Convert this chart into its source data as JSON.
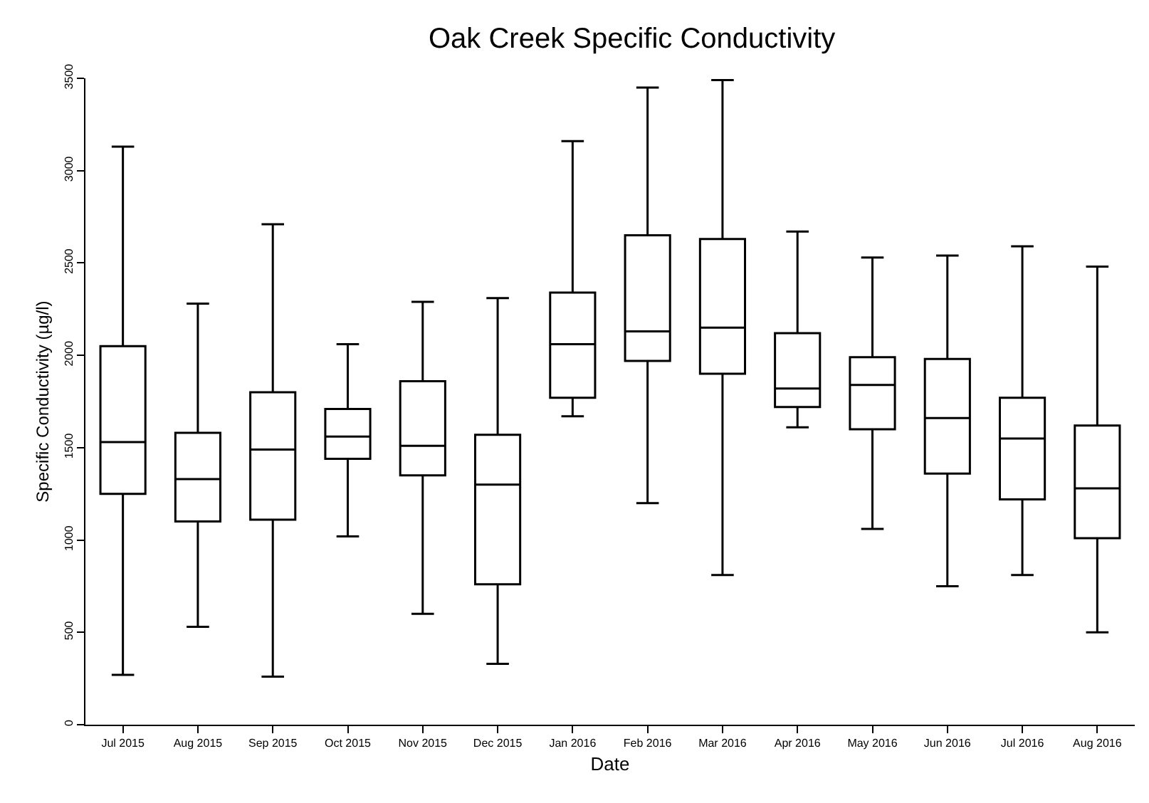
{
  "chart_data": {
    "type": "box",
    "title": "Oak Creek Specific Conductivity",
    "xlabel": "Date",
    "ylabel": "Specific Conductivity (µg/l)",
    "categories": [
      "Jul 2015",
      "Aug 2015",
      "Sep 2015",
      "Oct 2015",
      "Nov 2015",
      "Dec 2015",
      "Jan 2016",
      "Feb 2016",
      "Mar 2016",
      "Apr 2016",
      "May 2016",
      "Jun 2016",
      "Jul 2016",
      "Aug 2016"
    ],
    "boxes": [
      {
        "low": 270,
        "q1": 1250,
        "median": 1530,
        "q3": 2050,
        "high": 3130
      },
      {
        "low": 530,
        "q1": 1100,
        "median": 1330,
        "q3": 1580,
        "high": 2280
      },
      {
        "low": 260,
        "q1": 1110,
        "median": 1490,
        "q3": 1800,
        "high": 2710
      },
      {
        "low": 1020,
        "q1": 1440,
        "median": 1560,
        "q3": 1710,
        "high": 2060
      },
      {
        "low": 600,
        "q1": 1350,
        "median": 1510,
        "q3": 1860,
        "high": 2290
      },
      {
        "low": 330,
        "q1": 760,
        "median": 1300,
        "q3": 1570,
        "high": 2310
      },
      {
        "low": 1670,
        "q1": 1770,
        "median": 2060,
        "q3": 2340,
        "high": 3160
      },
      {
        "low": 1200,
        "q1": 1970,
        "median": 2130,
        "q3": 2650,
        "high": 3450
      },
      {
        "low": 810,
        "q1": 1900,
        "median": 2150,
        "q3": 2630,
        "high": 3490
      },
      {
        "low": 1610,
        "q1": 1720,
        "median": 1820,
        "q3": 2120,
        "high": 2670
      },
      {
        "low": 1060,
        "q1": 1600,
        "median": 1840,
        "q3": 1990,
        "high": 2530
      },
      {
        "low": 750,
        "q1": 1360,
        "median": 1660,
        "q3": 1980,
        "high": 2540
      },
      {
        "low": 810,
        "q1": 1220,
        "median": 1550,
        "q3": 1770,
        "high": 2590
      },
      {
        "low": 500,
        "q1": 1010,
        "median": 1280,
        "q3": 1620,
        "high": 2480
      }
    ],
    "color": "#000000",
    "ylim": [
      0,
      3500
    ],
    "yticks": [
      0,
      500,
      1000,
      1500,
      2000,
      2500,
      3000,
      3500
    ]
  }
}
